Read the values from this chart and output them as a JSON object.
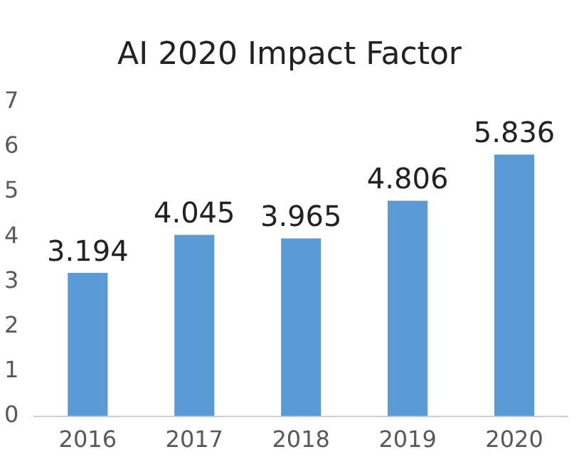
{
  "chart_data": {
    "type": "bar",
    "title": "AI 2020 Impact Factor",
    "categories": [
      "2016",
      "2017",
      "2018",
      "2019",
      "2020"
    ],
    "values": [
      3.194,
      4.045,
      3.965,
      4.806,
      5.836
    ],
    "color": "#5b9bd5",
    "ylim": [
      0,
      7
    ],
    "yticks": [
      0,
      1,
      2,
      3,
      4,
      5,
      6,
      7
    ],
    "grid": false,
    "legend": false,
    "data_labels": true
  }
}
